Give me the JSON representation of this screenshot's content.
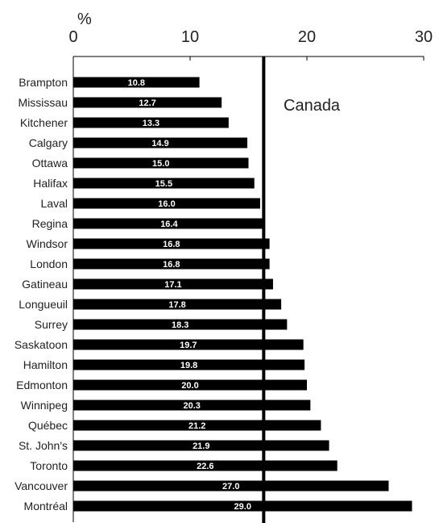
{
  "chart_data": {
    "type": "bar",
    "orientation": "horizontal",
    "unit_label": "%",
    "xlim": [
      0,
      30
    ],
    "x_ticks": [
      0,
      10,
      20,
      30
    ],
    "grid": false,
    "categories": [
      "Brampton",
      "Mississau",
      "Kitchener",
      "Calgary",
      "Ottawa",
      "Halifax",
      "Laval",
      "Regina",
      "Windsor",
      "London",
      "Gatineau",
      "Longueuil",
      "Surrey",
      "Saskatoon",
      "Hamilton",
      "Edmonton",
      "Winnipeg",
      "Québec",
      "St. John's",
      "Toronto",
      "Vancouver",
      "Montréal"
    ],
    "values": [
      10.8,
      12.7,
      13.3,
      14.9,
      15.0,
      15.5,
      16.0,
      16.4,
      16.8,
      16.8,
      17.1,
      17.8,
      18.3,
      19.7,
      19.8,
      20.0,
      20.3,
      21.2,
      21.9,
      22.6,
      27.0,
      29.0
    ],
    "value_labels": [
      "10.8",
      "12.7",
      "13.3",
      "14.9",
      "15.0",
      "15.5",
      "16.0",
      "16.4",
      "16.8",
      "16.8",
      "17.1",
      "17.8",
      "18.3",
      "19.7",
      "19.8",
      "20.0",
      "20.3",
      "21.2",
      "21.9",
      "22.6",
      "27.0",
      "29.0"
    ],
    "reference_line": {
      "label": "Canada",
      "value": 16.3
    },
    "colors": {
      "bar": "#000000",
      "value_text": "#ffffff",
      "axis": "#000000",
      "text": "#222222"
    }
  }
}
